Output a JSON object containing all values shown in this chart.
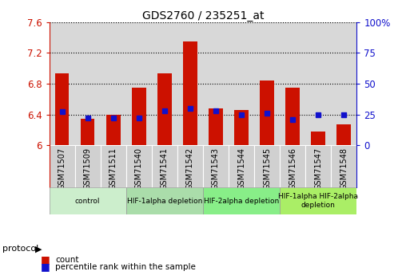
{
  "title": "GDS2760 / 235251_at",
  "samples": [
    "GSM71507",
    "GSM71509",
    "GSM71511",
    "GSM71540",
    "GSM71541",
    "GSM71542",
    "GSM71543",
    "GSM71544",
    "GSM71545",
    "GSM71546",
    "GSM71547",
    "GSM71548"
  ],
  "count_values": [
    6.93,
    6.34,
    6.4,
    6.75,
    6.93,
    7.35,
    6.48,
    6.46,
    6.84,
    6.75,
    6.18,
    6.27
  ],
  "percentile_values": [
    27,
    22,
    22,
    22,
    28,
    30,
    28,
    25,
    26,
    21,
    25,
    25
  ],
  "ymin": 6.0,
  "ymax": 7.6,
  "yticks_left": [
    6,
    6.4,
    6.8,
    7.2,
    7.6
  ],
  "ytick_labels_left": [
    "6",
    "6.4",
    "6.8",
    "7.2",
    "7.6"
  ],
  "right_yticks": [
    0,
    25,
    50,
    75,
    100
  ],
  "right_ytick_labels": [
    "0",
    "25",
    "50",
    "75",
    "100%"
  ],
  "bar_color": "#CC1100",
  "dot_color": "#1111CC",
  "plot_bg": "#D8D8D8",
  "groups": [
    {
      "label": "control",
      "start": 0,
      "end": 3,
      "color": "#CCEECC"
    },
    {
      "label": "HIF-1alpha depletion",
      "start": 3,
      "end": 6,
      "color": "#AADDAA"
    },
    {
      "label": "HIF-2alpha depletion",
      "start": 6,
      "end": 9,
      "color": "#88EE88"
    },
    {
      "label": "HIF-1alpha HIF-2alpha\ndepletion",
      "start": 9,
      "end": 12,
      "color": "#AAEE66"
    }
  ],
  "protocol_label": "protocol",
  "legend_count_label": "count",
  "legend_pct_label": "percentile rank within the sample"
}
